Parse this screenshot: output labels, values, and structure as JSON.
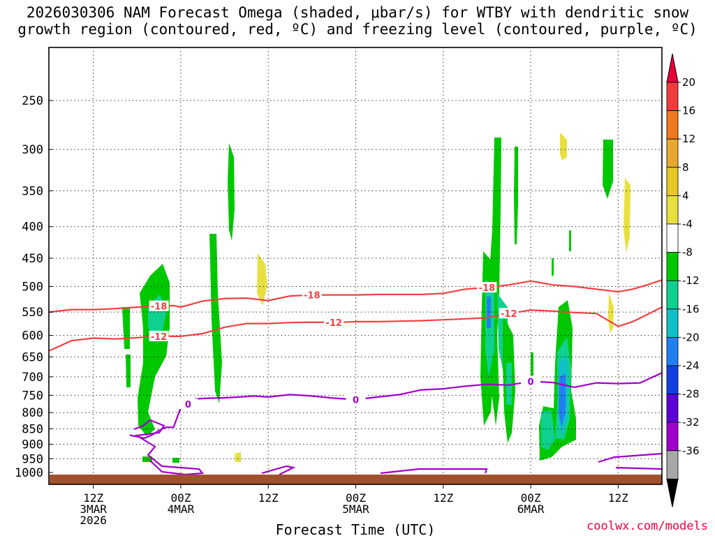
{
  "title_line1": "2026030306 NAM Forecast Omega (shaded, μbar/s) for WTBY with dendritic snow",
  "title_line2": "growth region (contoured, red, ºC) and freezing level (contoured, purple, ºC)",
  "credit": "coolwx.com/models",
  "chart_data": {
    "type": "heatmap",
    "title": "2026030306 NAM Forecast Omega (shaded, μbar/s) for WTBY with dendritic snow growth region (contoured, red, ºC) and freezing level (contoured, purple, ºC)",
    "xlabel": "Forecast Time (UTC)",
    "ylabel": "",
    "ylim": [
      1000,
      200
    ],
    "y_scale": "log-pressure",
    "grid": true,
    "y_ticks": [
      250,
      300,
      350,
      400,
      450,
      500,
      550,
      600,
      650,
      700,
      750,
      800,
      850,
      900,
      950,
      1000
    ],
    "x_ticks": [
      {
        "hour": 6,
        "lines": [
          "12Z",
          "3MAR",
          "2026"
        ]
      },
      {
        "hour": 18,
        "lines": [
          "00Z",
          "4MAR"
        ]
      },
      {
        "hour": 30,
        "lines": [
          "12Z"
        ]
      },
      {
        "hour": 42,
        "lines": [
          "00Z",
          "5MAR"
        ]
      },
      {
        "hour": 54,
        "lines": [
          "12Z"
        ]
      },
      {
        "hour": 66,
        "lines": [
          "00Z",
          "6MAR"
        ]
      },
      {
        "hour": 78,
        "lines": [
          "12Z"
        ]
      }
    ],
    "x_range_hours": [
      0,
      84
    ],
    "colorbar": {
      "labels": [
        "20",
        "16",
        "12",
        "8",
        "4",
        "-4",
        "-8",
        "-12",
        "-16",
        "-20",
        "-24",
        "-28",
        "-32",
        "-36"
      ],
      "colors_top_to_bottom": [
        "#e8003c",
        "#f03c3c",
        "#f07820",
        "#e8a830",
        "#e8c828",
        "#e8e040",
        "#ffffff",
        "#00c800",
        "#10d090",
        "#10c0c8",
        "#2080f0",
        "#1040e0",
        "#6000d8",
        "#a000c8",
        "#a8a8a8",
        "#000000"
      ]
    },
    "freezing_level_label": "0",
    "dgz_labels": [
      "-18",
      "-12"
    ],
    "series": [
      {
        "name": "-18",
        "color": "#f04040",
        "x": [
          0,
          3,
          6,
          9,
          12,
          15,
          17,
          18,
          21,
          24,
          27,
          30,
          33,
          36,
          39,
          42,
          45,
          48,
          51,
          54,
          57,
          60,
          63,
          66,
          69,
          72,
          75,
          78,
          80,
          82,
          84
        ],
        "y": [
          550,
          545,
          545,
          543,
          540,
          538,
          537,
          540,
          528,
          523,
          522,
          527,
          518,
          516,
          516,
          516,
          515,
          515,
          515,
          513,
          505,
          502,
          497,
          490,
          497,
          500,
          505,
          510,
          505,
          497,
          488
        ]
      },
      {
        "name": "-12",
        "color": "#f04040",
        "x": [
          0,
          3,
          6,
          9,
          12,
          15,
          18,
          21,
          24,
          27,
          30,
          33,
          36,
          39,
          42,
          45,
          48,
          51,
          54,
          57,
          60,
          63,
          66,
          69,
          72,
          75,
          78,
          80,
          82,
          84
        ],
        "y": [
          635,
          612,
          606,
          608,
          605,
          602,
          602,
          596,
          582,
          574,
          574,
          572,
          571,
          572,
          570,
          570,
          569,
          568,
          566,
          564,
          562,
          553,
          546,
          548,
          551,
          553,
          580,
          570,
          555,
          540
        ]
      },
      {
        "name": "0",
        "color": "#a000c8",
        "x": [
          11,
          13,
          14,
          15,
          16,
          17,
          17.5,
          18,
          19,
          20,
          22,
          24,
          26,
          28,
          30,
          33,
          36,
          39,
          42,
          45,
          48,
          51,
          54,
          57,
          60,
          63,
          66,
          69,
          72,
          75,
          78,
          81,
          84
        ],
        "y": [
          870,
          880,
          870,
          855,
          845,
          845,
          815,
          785,
          775,
          760,
          758,
          757,
          755,
          752,
          755,
          748,
          752,
          758,
          762,
          755,
          748,
          735,
          732,
          725,
          720,
          722,
          712,
          715,
          728,
          716,
          718,
          716,
          690
        ]
      }
    ]
  }
}
